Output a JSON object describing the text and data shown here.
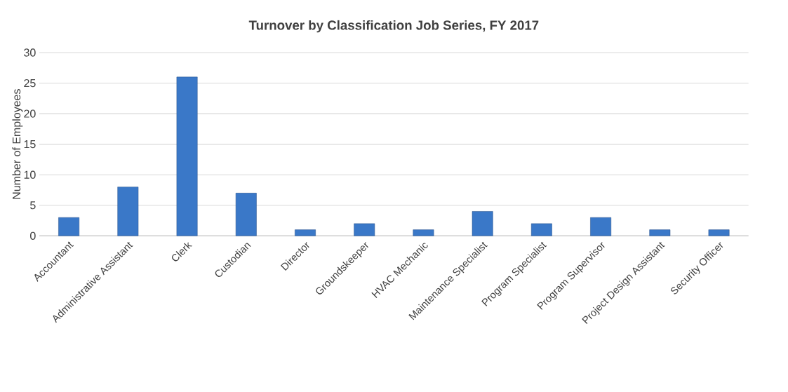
{
  "chart_data": {
    "type": "bar",
    "title": "Turnover by Classification Job Series, FY 2017",
    "ylabel": "Number of Employees",
    "categories": [
      "Accountant",
      "Administrative Assistant",
      "Clerk",
      "Custodian",
      "Director",
      "Groundskeeper",
      "HVAC Mechanic",
      "Maintenance Specialist",
      "Program Specialist",
      "Program Supervisor",
      "Project Design Assistant",
      "Security Officer"
    ],
    "values": [
      3,
      8,
      26,
      7,
      1,
      2,
      1,
      4,
      2,
      3,
      1,
      1
    ],
    "color": "#3a78c8",
    "ylim": [
      0,
      30
    ],
    "yticks": [
      0,
      5,
      10,
      15,
      20,
      25,
      30
    ],
    "grid": "y"
  }
}
